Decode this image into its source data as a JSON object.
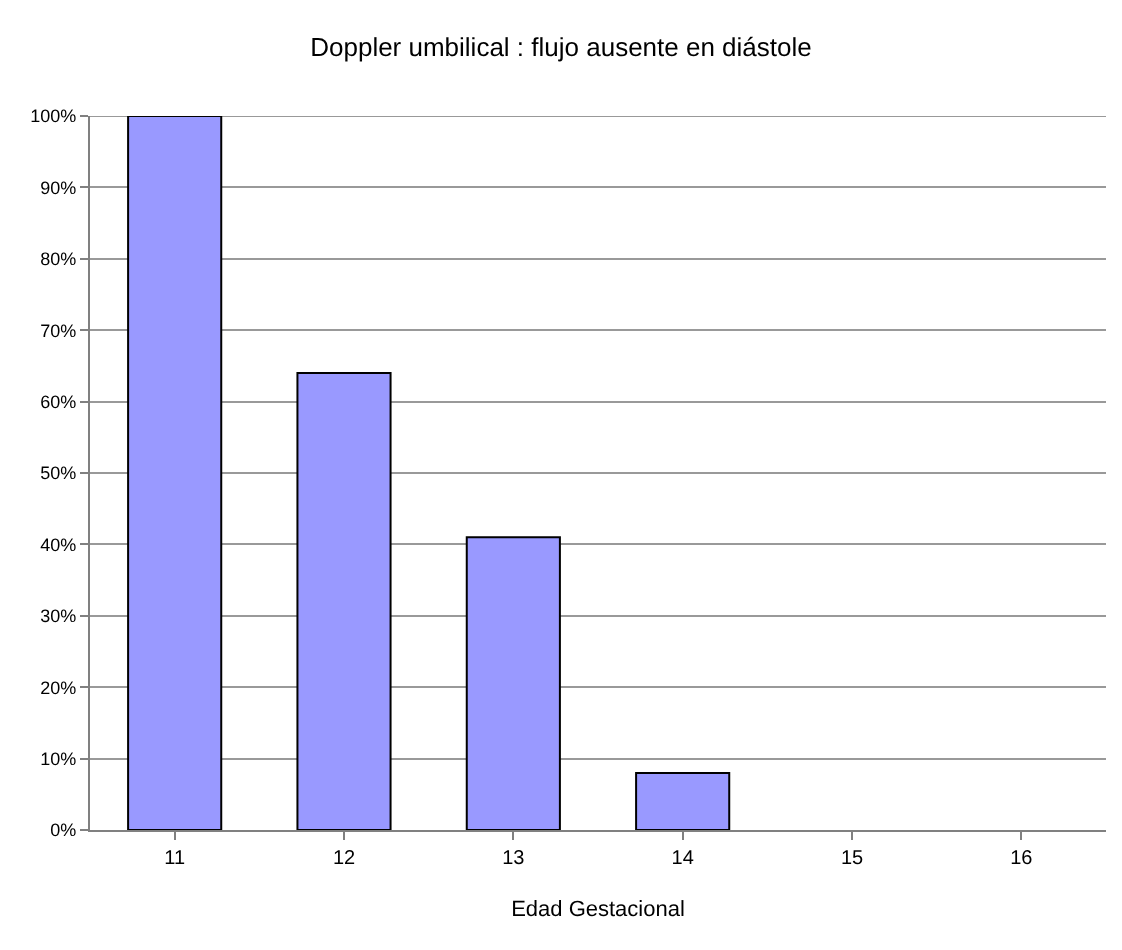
{
  "chart_data": {
    "type": "bar",
    "title": "Doppler umbilical : flujo ausente en diástole",
    "xlabel": "Edad Gestacional",
    "categories": [
      "11",
      "12",
      "13",
      "14",
      "15",
      "16"
    ],
    "values": [
      100,
      64,
      41,
      8,
      0,
      0
    ],
    "color": "#9999ff",
    "ylim": [
      0,
      100
    ],
    "yticks": [
      {
        "value": 0,
        "label": "0%"
      },
      {
        "value": 10,
        "label": "10%"
      },
      {
        "value": 20,
        "label": "20%"
      },
      {
        "value": 30,
        "label": "30%"
      },
      {
        "value": 40,
        "label": "40%"
      },
      {
        "value": 50,
        "label": "50%"
      },
      {
        "value": 60,
        "label": "60%"
      },
      {
        "value": 70,
        "label": "70%"
      },
      {
        "value": 80,
        "label": "80%"
      },
      {
        "value": 90,
        "label": "90%"
      },
      {
        "value": 100,
        "label": "100%"
      }
    ],
    "grid": "y"
  }
}
